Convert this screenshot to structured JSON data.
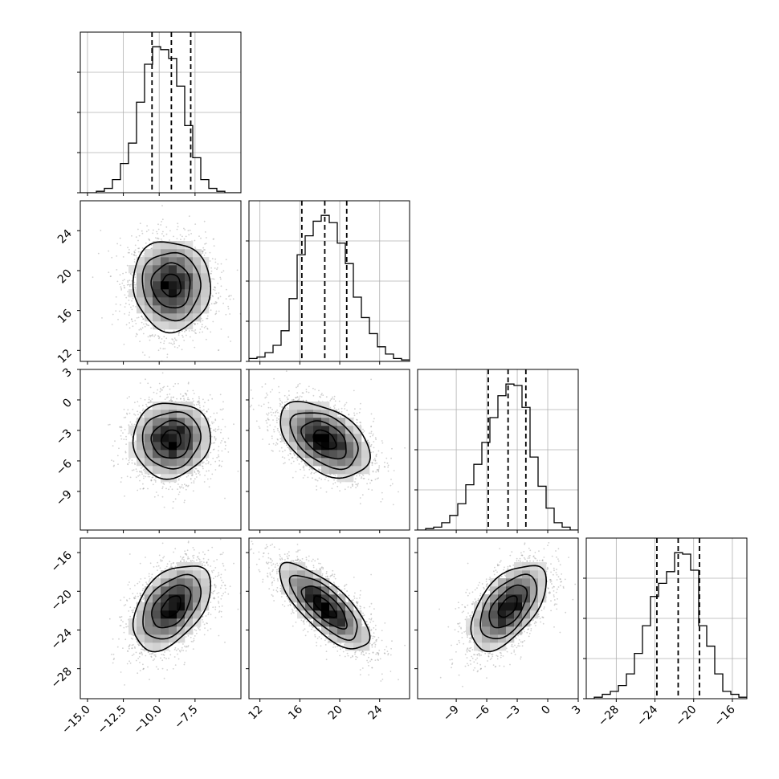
{
  "chart_data": {
    "type": "corner",
    "title": "",
    "parameters": [
      {
        "name": "p1",
        "label": "",
        "range": [
          -15.5,
          -4.3
        ],
        "x_ticks": [
          -15.0,
          -12.5,
          -10.0,
          -7.5
        ],
        "x_tick_labels": [
          "−15.0",
          "−12.5",
          "−10.0",
          "−7.5"
        ],
        "quantiles": [
          -10.5,
          -9.15,
          -7.8
        ],
        "histogram": [
          0,
          0,
          0.01,
          0.03,
          0.09,
          0.2,
          0.34,
          0.62,
          0.88,
          1.0,
          0.98,
          0.92,
          0.73,
          0.46,
          0.24,
          0.09,
          0.03,
          0.01,
          0,
          0
        ]
      },
      {
        "name": "p2",
        "label": "",
        "range": [
          10.9,
          27.0
        ],
        "x_ticks": [
          12,
          16,
          20,
          24
        ],
        "x_tick_labels": [
          "12",
          "16",
          "20",
          "24"
        ],
        "y_ticks": [
          12,
          16,
          20,
          24
        ],
        "y_tick_labels": [
          "12",
          "16",
          "20",
          "24"
        ],
        "quantiles": [
          16.2,
          18.5,
          20.7
        ],
        "histogram": [
          0.02,
          0.03,
          0.06,
          0.11,
          0.21,
          0.43,
          0.73,
          0.86,
          0.96,
          1.0,
          0.95,
          0.81,
          0.67,
          0.44,
          0.3,
          0.19,
          0.1,
          0.05,
          0.02,
          0.01
        ]
      },
      {
        "name": "p3",
        "label": "",
        "range": [
          -12.8,
          3.0
        ],
        "x_ticks": [
          -9,
          -6,
          -3,
          0,
          3
        ],
        "x_tick_labels": [
          "−9",
          "−6",
          "−3",
          "0",
          "3"
        ],
        "y_ticks": [
          -9,
          -6,
          -3,
          0,
          3
        ],
        "y_tick_labels": [
          "−9",
          "−6",
          "−3",
          "0",
          "3"
        ],
        "quantiles": [
          -5.85,
          -3.9,
          -2.15
        ],
        "histogram": [
          0,
          0.01,
          0.02,
          0.05,
          0.1,
          0.18,
          0.31,
          0.45,
          0.6,
          0.77,
          0.92,
          1.0,
          0.99,
          0.84,
          0.5,
          0.3,
          0.15,
          0.05,
          0.02,
          0
        ]
      },
      {
        "name": "p4",
        "label": "",
        "range": [
          -31.1,
          -14.5
        ],
        "x_ticks": [
          -28,
          -24,
          -20,
          -16
        ],
        "x_tick_labels": [
          "−28",
          "−24",
          "−20",
          "−16"
        ],
        "y_ticks": [
          -28,
          -24,
          -20,
          -16
        ],
        "y_tick_labels": [
          "−28",
          "−24",
          "−20",
          "−16"
        ],
        "quantiles": [
          -23.8,
          -21.6,
          -19.4
        ],
        "histogram": [
          0,
          0.01,
          0.03,
          0.05,
          0.09,
          0.17,
          0.31,
          0.5,
          0.7,
          0.79,
          0.87,
          1.0,
          0.99,
          0.88,
          0.5,
          0.36,
          0.17,
          0.05,
          0.03,
          0.01
        ]
      }
    ],
    "pairs": [
      {
        "x": 0,
        "y": 1,
        "mean": [
          -9.15,
          18.5
        ],
        "correlation": -0.05
      },
      {
        "x": 0,
        "y": 2,
        "mean": [
          -9.15,
          -3.9
        ],
        "correlation": 0.05
      },
      {
        "x": 1,
        "y": 2,
        "mean": [
          18.5,
          -3.9
        ],
        "correlation": -0.45
      },
      {
        "x": 0,
        "y": 3,
        "mean": [
          -9.15,
          -21.6
        ],
        "correlation": 0.45
      },
      {
        "x": 1,
        "y": 3,
        "mean": [
          18.5,
          -21.6
        ],
        "correlation": -0.75
      },
      {
        "x": 2,
        "y": 3,
        "mean": [
          -3.9,
          -21.6
        ],
        "correlation": 0.55
      }
    ],
    "contour_levels": [
      0.118,
      0.393,
      0.675,
      0.865
    ],
    "grid": true,
    "legend": "none"
  }
}
